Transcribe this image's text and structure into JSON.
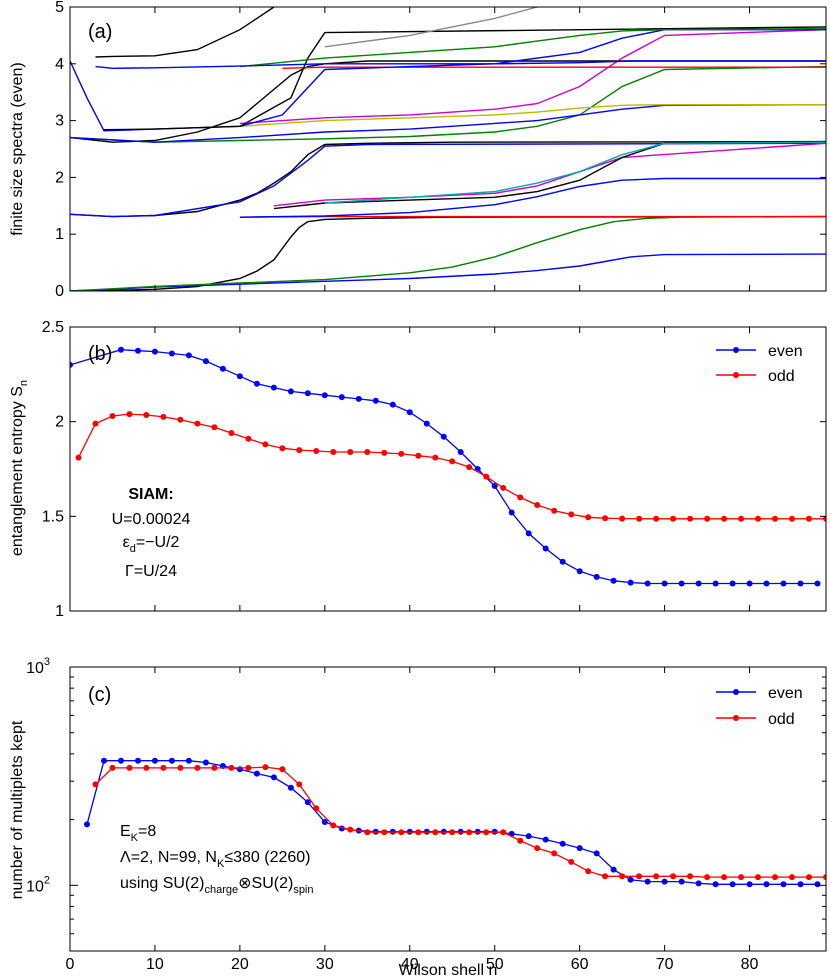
{
  "figure": {
    "xlabel": "Wilson shell n",
    "x_ticks": [
      "0",
      "10",
      "20",
      "30",
      "40",
      "50",
      "60",
      "70",
      "80"
    ]
  },
  "chart_data": [
    {
      "type": "line",
      "panel_label": "(a)",
      "ylabel": "finite size spectra (even)",
      "ylim": [
        0,
        5
      ],
      "xlim": [
        0,
        89
      ],
      "y_ticks": [
        "0",
        "1",
        "2",
        "3",
        "4",
        "5"
      ],
      "series_colors": [
        "#0000ff",
        "#000000",
        "#ff0000",
        "#008000",
        "#cc00cc",
        "#00aaaa",
        "#bbbb00",
        "#888888"
      ],
      "series": [
        {
          "color": "#000000",
          "x": [
            0,
            5,
            10,
            15,
            20,
            22,
            24,
            25,
            26,
            27,
            28,
            30,
            35,
            45,
            89
          ],
          "values": [
            0.0,
            0.01,
            0.03,
            0.08,
            0.22,
            0.35,
            0.55,
            0.75,
            0.95,
            1.12,
            1.22,
            1.26,
            1.28,
            1.3,
            1.31
          ]
        },
        {
          "color": "#0000ff",
          "x": [
            0,
            5,
            10,
            20,
            30,
            40,
            50,
            55,
            60,
            63,
            66,
            70,
            89
          ],
          "values": [
            0.0,
            0.03,
            0.07,
            0.12,
            0.17,
            0.22,
            0.3,
            0.36,
            0.44,
            0.52,
            0.6,
            0.64,
            0.65
          ]
        },
        {
          "color": "#008000",
          "x": [
            0,
            10,
            20,
            30,
            40,
            45,
            50,
            55,
            60,
            64,
            68,
            72,
            89
          ],
          "values": [
            0.0,
            0.08,
            0.14,
            0.2,
            0.32,
            0.42,
            0.6,
            0.85,
            1.08,
            1.22,
            1.28,
            1.3,
            1.31
          ]
        },
        {
          "color": "#ff0000",
          "x": [
            20,
            30,
            89
          ],
          "values": [
            1.3,
            1.31,
            1.31
          ]
        },
        {
          "color": "#0000ff",
          "x": [
            20,
            30,
            40,
            50,
            55,
            60,
            65,
            70,
            89
          ],
          "values": [
            1.3,
            1.32,
            1.38,
            1.52,
            1.66,
            1.84,
            1.95,
            1.98,
            1.98
          ]
        },
        {
          "color": "#000000",
          "x": [
            0,
            5,
            10,
            15,
            20,
            22,
            24,
            26,
            28,
            30,
            35,
            45,
            89
          ],
          "values": [
            1.35,
            1.31,
            1.33,
            1.4,
            1.6,
            1.72,
            1.9,
            2.1,
            2.4,
            2.58,
            2.6,
            2.62,
            2.63
          ]
        },
        {
          "color": "#0000ff",
          "x": [
            0,
            5,
            10,
            20,
            24,
            28,
            30,
            35,
            89
          ],
          "values": [
            1.35,
            1.31,
            1.33,
            1.57,
            1.85,
            2.3,
            2.55,
            2.58,
            2.6
          ]
        },
        {
          "color": "#cc00cc",
          "x": [
            24,
            30,
            40,
            50,
            55,
            60,
            65,
            89
          ],
          "values": [
            1.5,
            1.6,
            1.65,
            1.72,
            1.85,
            2.1,
            2.35,
            2.6
          ]
        },
        {
          "color": "#000000",
          "x": [
            24,
            30,
            40,
            50,
            55,
            60,
            65,
            70,
            89
          ],
          "values": [
            1.45,
            1.55,
            1.6,
            1.65,
            1.75,
            1.95,
            2.35,
            2.6,
            2.63
          ]
        },
        {
          "color": "#00aaaa",
          "x": [
            30,
            40,
            50,
            55,
            60,
            65,
            70,
            89
          ],
          "values": [
            1.55,
            1.65,
            1.75,
            1.9,
            2.1,
            2.4,
            2.6,
            2.62
          ]
        },
        {
          "color": "#000000",
          "x": [
            0,
            5,
            10,
            15,
            20,
            22,
            24,
            26,
            28,
            30,
            35,
            89
          ],
          "values": [
            2.7,
            2.62,
            2.65,
            2.8,
            3.05,
            3.3,
            3.55,
            3.8,
            3.95,
            4.0,
            4.05,
            4.05
          ]
        },
        {
          "color": "#008000",
          "x": [
            0,
            10,
            20,
            30,
            40,
            50,
            55,
            60,
            65,
            70,
            89
          ],
          "values": [
            2.7,
            2.62,
            2.65,
            2.68,
            2.72,
            2.8,
            2.9,
            3.1,
            3.6,
            3.9,
            3.95
          ]
        },
        {
          "color": "#0000ff",
          "x": [
            0,
            10,
            20,
            30,
            40,
            50,
            55,
            60,
            65,
            70,
            89
          ],
          "values": [
            2.7,
            2.62,
            2.7,
            2.8,
            2.85,
            2.95,
            3.0,
            3.1,
            3.2,
            3.27,
            3.28
          ]
        },
        {
          "color": "#bbbb00",
          "x": [
            20,
            30,
            40,
            50,
            55,
            60,
            65,
            70,
            89
          ],
          "values": [
            2.9,
            3.0,
            3.05,
            3.1,
            3.15,
            3.22,
            3.27,
            3.28,
            3.28
          ]
        },
        {
          "color": "#cc00cc",
          "x": [
            20,
            30,
            40,
            50,
            55,
            60,
            65,
            70,
            89
          ],
          "values": [
            2.95,
            3.05,
            3.1,
            3.2,
            3.3,
            3.6,
            4.1,
            4.5,
            4.6
          ]
        },
        {
          "color": "#ff0000",
          "x": [
            25,
            30,
            50,
            89
          ],
          "values": [
            3.92,
            3.94,
            3.94,
            3.94
          ]
        },
        {
          "color": "#0000ff",
          "x": [
            0,
            2,
            4,
            10,
            20,
            25,
            30,
            40,
            50,
            60,
            65,
            70,
            89
          ],
          "values": [
            4.05,
            3.4,
            2.82,
            2.85,
            2.9,
            3.1,
            3.9,
            3.95,
            4.0,
            4.2,
            4.45,
            4.6,
            4.6
          ]
        },
        {
          "color": "#000000",
          "x": [
            4,
            10,
            20,
            26,
            28,
            30,
            89
          ],
          "values": [
            2.84,
            2.85,
            2.9,
            3.4,
            4.1,
            4.55,
            4.65
          ]
        },
        {
          "color": "#008000",
          "x": [
            20,
            30,
            40,
            50,
            55,
            60,
            65,
            70,
            89
          ],
          "values": [
            3.95,
            4.1,
            4.2,
            4.3,
            4.4,
            4.5,
            4.58,
            4.6,
            4.62
          ]
        },
        {
          "color": "#000000",
          "x": [
            3,
            5,
            10,
            15,
            20,
            22,
            24,
            26,
            28,
            30,
            89
          ],
          "values": [
            4.12,
            4.13,
            4.14,
            4.25,
            4.6,
            4.8,
            5.0,
            5.1,
            5.1,
            5.1,
            5.1
          ]
        },
        {
          "color": "#0000ff",
          "x": [
            3,
            5,
            10,
            20,
            30,
            40,
            50,
            60,
            66,
            70,
            89
          ],
          "values": [
            3.95,
            3.92,
            3.93,
            3.96,
            4.0,
            4.0,
            4.0,
            4.02,
            4.05,
            4.05,
            4.05
          ]
        },
        {
          "color": "#888888",
          "x": [
            30,
            40,
            50,
            55,
            60
          ],
          "values": [
            4.3,
            4.5,
            4.8,
            5.0,
            5.1
          ]
        }
      ]
    },
    {
      "type": "line",
      "panel_label": "(b)",
      "ylabel": "entanglement entropy S_n",
      "ylim": [
        1,
        2.5
      ],
      "xlim": [
        0,
        89
      ],
      "y_ticks": [
        "1",
        "1.5",
        "2",
        "2.5"
      ],
      "legend": "top-right",
      "series": [
        {
          "name": "even",
          "color": "#0000ff",
          "x": [
            0,
            6,
            8,
            10,
            12,
            14,
            16,
            18,
            20,
            22,
            24,
            26,
            28,
            30,
            32,
            34,
            36,
            38,
            40,
            42,
            44,
            46,
            48,
            50,
            52,
            54,
            56,
            58,
            60,
            62,
            64,
            66,
            68,
            70,
            72,
            74,
            76,
            78,
            80,
            82,
            84,
            86,
            88
          ],
          "values": [
            2.3,
            2.38,
            2.375,
            2.37,
            2.36,
            2.35,
            2.32,
            2.28,
            2.24,
            2.2,
            2.18,
            2.16,
            2.15,
            2.14,
            2.13,
            2.12,
            2.11,
            2.09,
            2.05,
            1.99,
            1.92,
            1.84,
            1.75,
            1.66,
            1.52,
            1.41,
            1.33,
            1.26,
            1.21,
            1.18,
            1.16,
            1.15,
            1.145,
            1.145,
            1.145,
            1.145,
            1.145,
            1.145,
            1.145,
            1.145,
            1.145,
            1.145,
            1.145
          ]
        },
        {
          "name": "odd",
          "color": "#ff0000",
          "x": [
            1,
            3,
            5,
            7,
            9,
            11,
            13,
            15,
            17,
            19,
            21,
            23,
            25,
            27,
            29,
            31,
            33,
            35,
            37,
            39,
            41,
            43,
            45,
            47,
            49,
            51,
            53,
            55,
            57,
            59,
            61,
            63,
            65,
            67,
            69,
            71,
            73,
            75,
            77,
            79,
            81,
            83,
            85,
            87,
            89
          ],
          "values": [
            1.81,
            1.99,
            2.03,
            2.04,
            2.035,
            2.025,
            2.01,
            1.99,
            1.97,
            1.94,
            1.91,
            1.88,
            1.86,
            1.85,
            1.845,
            1.84,
            1.84,
            1.84,
            1.835,
            1.83,
            1.82,
            1.81,
            1.79,
            1.76,
            1.71,
            1.65,
            1.6,
            1.56,
            1.53,
            1.51,
            1.495,
            1.49,
            1.488,
            1.487,
            1.487,
            1.487,
            1.487,
            1.487,
            1.487,
            1.487,
            1.487,
            1.487,
            1.487,
            1.487,
            1.487
          ]
        }
      ],
      "annotation": {
        "title": "SIAM:",
        "line1": "U=0.00024",
        "line2_base": "ε",
        "line2_sub": "d",
        "line2_rest": "=−U/2",
        "line3": "Γ=U/24"
      }
    },
    {
      "type": "line",
      "panel_label": "(c)",
      "ylabel": "number of multiplets kept",
      "yscale": "log",
      "ylim": [
        50,
        1000
      ],
      "xlim": [
        0,
        89
      ],
      "y_tick_base": "10",
      "y_tick_exps": [
        "2",
        "3"
      ],
      "legend": "top-right",
      "series": [
        {
          "name": "even",
          "color": "#0000ff",
          "x": [
            2,
            4,
            6,
            8,
            10,
            12,
            14,
            16,
            18,
            20,
            22,
            24,
            26,
            28,
            30,
            32,
            34,
            36,
            38,
            40,
            42,
            44,
            46,
            48,
            50,
            52,
            54,
            56,
            58,
            60,
            62,
            64,
            66,
            68,
            70,
            72,
            74,
            76,
            78,
            80,
            82,
            84,
            86,
            88
          ],
          "values": [
            190,
            372,
            372,
            372,
            372,
            372,
            372,
            365,
            352,
            340,
            325,
            312,
            280,
            240,
            195,
            182,
            178,
            176,
            176,
            176,
            176,
            176,
            176,
            176,
            176,
            172,
            168,
            162,
            155,
            148,
            140,
            118,
            106,
            104,
            104,
            104,
            102,
            101,
            101,
            101,
            101,
            101,
            101,
            101
          ]
        },
        {
          "name": "odd",
          "color": "#ff0000",
          "x": [
            3,
            5,
            7,
            9,
            11,
            13,
            15,
            17,
            19,
            21,
            23,
            25,
            27,
            29,
            31,
            33,
            35,
            37,
            39,
            41,
            43,
            45,
            47,
            49,
            51,
            53,
            55,
            57,
            59,
            61,
            63,
            65,
            67,
            69,
            71,
            73,
            75,
            77,
            79,
            81,
            83,
            85,
            87,
            89
          ],
          "values": [
            290,
            345,
            345,
            345,
            345,
            345,
            345,
            345,
            345,
            345,
            348,
            340,
            290,
            225,
            188,
            180,
            175,
            175,
            175,
            175,
            175,
            175,
            175,
            175,
            175,
            160,
            148,
            140,
            128,
            116,
            110,
            110,
            110,
            110,
            110,
            110,
            109,
            109,
            109,
            109,
            109,
            109,
            109,
            109
          ]
        }
      ],
      "annotation": {
        "line1_base": "E",
        "line1_sub": "K",
        "line1_rest": "=8",
        "line2_a": "Λ=2, N=99, N",
        "line2_sub": "K",
        "line2_b": "≤380 (2260)",
        "line3_a": "using SU(2)",
        "line3_sub1": "charge",
        "line3_b": "⊗SU(2)",
        "line3_sub2": "spin"
      }
    }
  ]
}
